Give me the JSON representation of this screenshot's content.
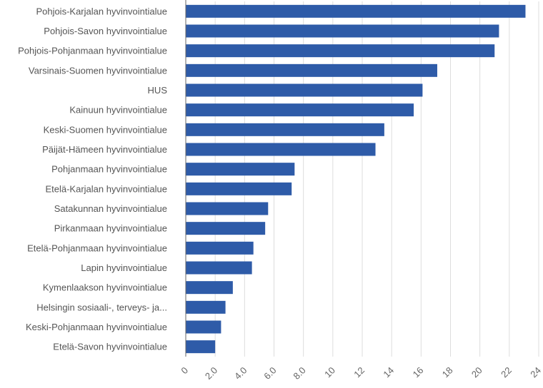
{
  "chart_data": {
    "type": "bar",
    "orientation": "horizontal",
    "title": "",
    "xlabel": "",
    "ylabel": "",
    "xlim": [
      0,
      24
    ],
    "ticks": [
      "0",
      "2.0",
      "4.0",
      "6.0",
      "8.0",
      "10",
      "12",
      "14",
      "16",
      "18",
      "20",
      "22",
      "24"
    ],
    "tick_values": [
      0,
      2,
      4,
      6,
      8,
      10,
      12,
      14,
      16,
      18,
      20,
      22,
      24
    ],
    "grid": "vertical",
    "bar_color": "#2e5ba8",
    "categories": [
      "Pohjois-Karjalan hyvinvointialue",
      "Pohjois-Savon hyvinvointialue",
      "Pohjois-Pohjanmaan hyvinvointialue",
      "Varsinais-Suomen hyvinvointialue",
      "HUS",
      "Kainuun hyvinvointialue",
      "Keski-Suomen hyvinvointialue",
      "Päijät-Hämeen hyvinvointialue",
      "Pohjanmaan hyvinvointialue",
      "Etelä-Karjalan hyvinvointialue",
      "Satakunnan hyvinvointialue",
      "Pirkanmaan hyvinvointialue",
      "Etelä-Pohjanmaan hyvinvointialue",
      "Lapin hyvinvointialue",
      "Kymenlaakson hyvinvointialue",
      "Helsingin sosiaali-, terveys- ja...",
      "Keski-Pohjanmaan hyvinvointialue",
      "Etelä-Savon hyvinvointialue"
    ],
    "values": [
      23.1,
      21.3,
      21.0,
      17.1,
      16.1,
      15.5,
      13.5,
      12.9,
      7.4,
      7.2,
      5.6,
      5.4,
      4.6,
      4.5,
      3.2,
      2.7,
      2.4,
      2.0
    ]
  }
}
